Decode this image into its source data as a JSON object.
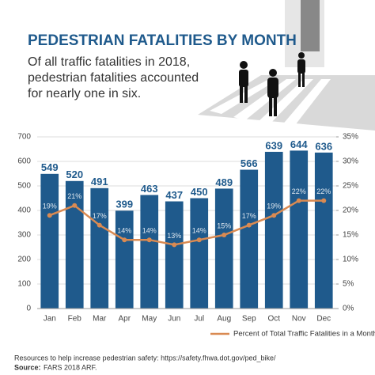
{
  "chart_data": {
    "type": "bar",
    "title": "PEDESTRIAN FATALITIES BY MONTH",
    "subtitle": [
      "Of all traffic fatalities in 2018,",
      "pedestrian fatalities accounted",
      "for nearly one in six."
    ],
    "categories": [
      "Jan",
      "Feb",
      "Mar",
      "Apr",
      "May",
      "Jun",
      "Jul",
      "Aug",
      "Sep",
      "Oct",
      "Nov",
      "Dec"
    ],
    "series": [
      {
        "color": "#1f5a8c",
        "values": [
          549,
          520,
          491,
          399,
          463,
          437,
          450,
          489,
          566,
          639,
          644,
          636
        ]
      },
      {
        "name": "Percent of Total Traffic Fatalities in a Month",
        "type": "line",
        "axis": "y2",
        "color": "#d98a52",
        "values": [
          19,
          21,
          17,
          14,
          14,
          13,
          14,
          15,
          17,
          19,
          22,
          22
        ],
        "value_labels": [
          "19%",
          "21%",
          "17%",
          "14%",
          "14%",
          "13%",
          "14%",
          "15%",
          "17%",
          "19%",
          "22%",
          "22%"
        ]
      }
    ],
    "ylim": [
      0,
      700
    ],
    "yticks": [
      0,
      100,
      200,
      300,
      400,
      500,
      600,
      700
    ],
    "y2lim": [
      0,
      35
    ],
    "y2ticks": [
      {
        "value": 0,
        "label": "0%"
      },
      {
        "value": 5,
        "label": "5%"
      },
      {
        "value": 10,
        "label": "10%"
      },
      {
        "value": 15,
        "label": "15%"
      },
      {
        "value": 20,
        "label": "20%"
      },
      {
        "value": 25,
        "label": "25%"
      },
      {
        "value": 30,
        "label": "30%"
      },
      {
        "value": 35,
        "label": "35%"
      }
    ],
    "grid": true,
    "legend": "bottom-right",
    "resources": "Resources to help increase pedestrian safety:  https://safety.fhwa.dot.gov/ped_bike/",
    "source_label": "Source:",
    "source": "FARS 2018 ARF."
  }
}
